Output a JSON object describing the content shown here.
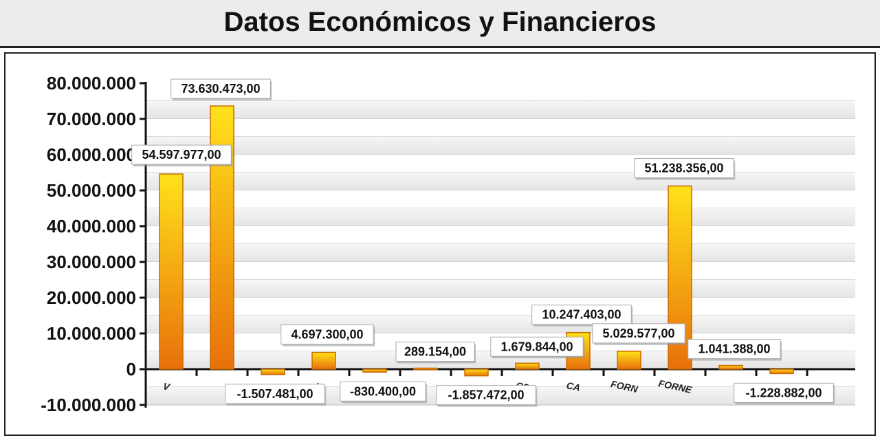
{
  "chart_data": {
    "type": "bar",
    "title": "Datos Económicos y Financieros",
    "categories": [
      "V",
      "",
      "",
      "V",
      "",
      "",
      "",
      "CP",
      "CA",
      "FORN",
      "FORNE",
      "",
      ""
    ],
    "values": [
      54597977,
      73630473,
      -1507481,
      4697300,
      -830400,
      289154,
      -1857472,
      1679844,
      10247403,
      5029577,
      51238356,
      1041388,
      -1228882
    ],
    "value_labels": [
      "54.597.977,00",
      "73.630.473,00",
      "-1.507.481,00",
      "4.697.300,00",
      "-830.400,00",
      "289.154,00",
      "-1.857.472,00",
      "1.679.844,00",
      "10.247.403,00",
      "5.029.577,00",
      "51.238.356,00",
      "1.041.388,00",
      "-1.228.882,00"
    ],
    "y_ticks": [
      "80.000.000",
      "70.000.000",
      "60.000.000",
      "50.000.000",
      "40.000.000",
      "30.000.000",
      "20.000.000",
      "10.000.000",
      "0",
      "-10.000.000"
    ],
    "ylim": [
      -10000000,
      80000000
    ],
    "grid": true,
    "legend": "none",
    "colors": {
      "bar_top": "#ffe21a",
      "bar_bottom": "#e8700a",
      "bar_edge": "#c86a00"
    }
  }
}
